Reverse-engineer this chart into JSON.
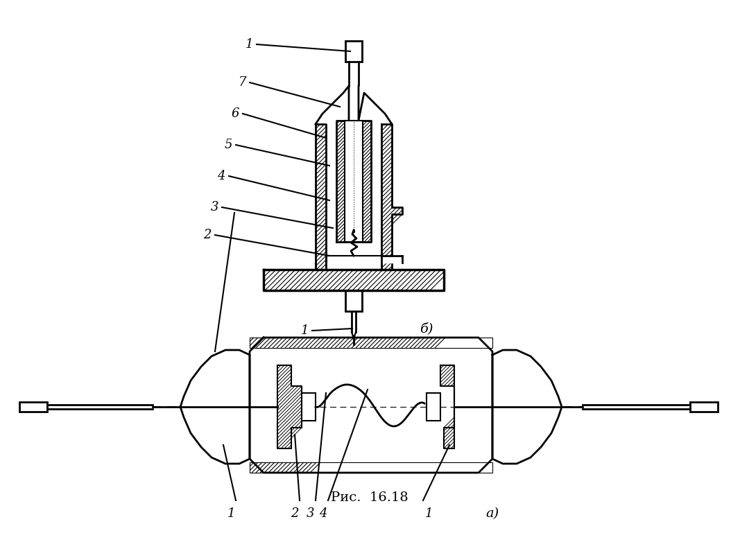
{
  "background_color": "#ffffff",
  "line_color": "#000000",
  "caption": "Рис.  16.18",
  "fig_width": 10.67,
  "fig_height": 7.69,
  "dpi": 100
}
